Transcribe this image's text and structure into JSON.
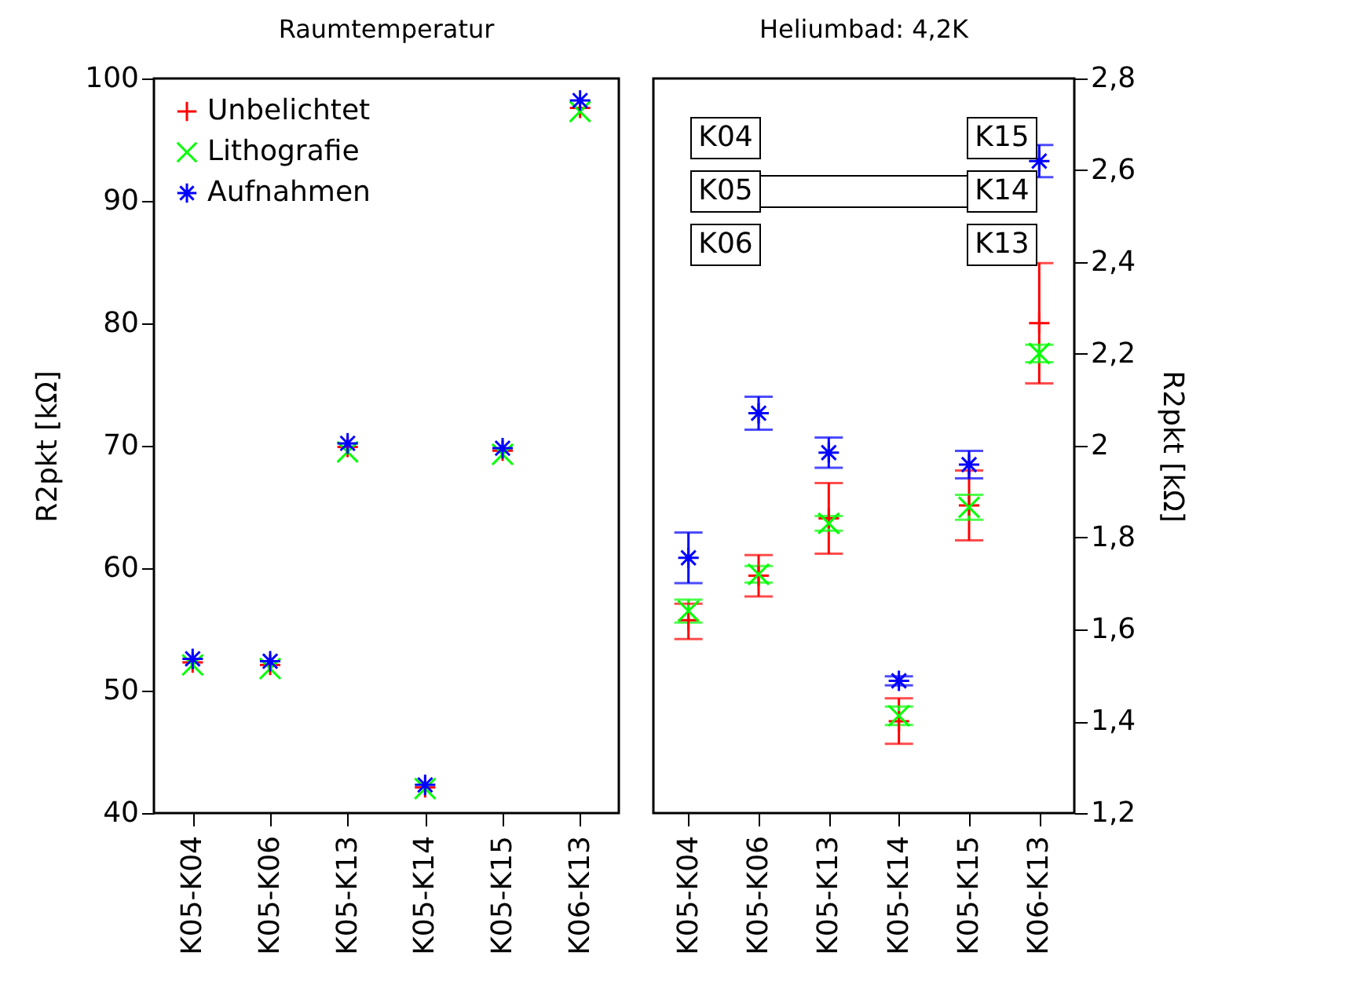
{
  "chart_data": [
    {
      "type": "scatter",
      "title": "Raumtemperatur",
      "categories": [
        "K05-K04",
        "K05-K06",
        "K05-K13",
        "K05-K14",
        "K05-K15",
        "K06-K13"
      ],
      "ylabel": "R2pkt [kΩ]",
      "ylim": [
        40,
        100
      ],
      "yticks": [
        40,
        50,
        60,
        70,
        80,
        90,
        100
      ],
      "grid": false,
      "legend": "top left",
      "series": [
        {
          "name": "Unbelichtet",
          "color": "#ff0000",
          "values": [
            52.3,
            52.1,
            69.9,
            42.1,
            69.6,
            97.6
          ]
        },
        {
          "name": "Lithografie",
          "color": "#00ff00",
          "values": [
            52.1,
            51.8,
            69.5,
            42.0,
            69.3,
            97.3
          ]
        },
        {
          "name": "Aufnahmen",
          "color": "#0000ff",
          "values": [
            52.6,
            52.4,
            70.2,
            42.3,
            69.8,
            98.2
          ]
        }
      ]
    },
    {
      "type": "scatter",
      "title": "Heliumbad: 4,2K",
      "categories": [
        "K05-K04",
        "K05-K06",
        "K05-K13",
        "K05-K14",
        "K05-K15",
        "K06-K13"
      ],
      "y2label": "R2pkt [kΩ]",
      "y2lim": [
        1.2,
        2.8
      ],
      "y2ticks": [
        {
          "value": 1.2,
          "label": "1,2"
        },
        {
          "value": 1.4,
          "label": "1,4"
        },
        {
          "value": 1.6,
          "label": "1,6"
        },
        {
          "value": 1.8,
          "label": "1,8"
        },
        2,
        {
          "value": 2.2,
          "label": "2,2"
        },
        {
          "value": 2.4,
          "label": "2,4"
        },
        {
          "value": 2.6,
          "label": "2,6"
        },
        {
          "value": 2.8,
          "label": "2,8"
        }
      ],
      "grid": false,
      "legend": false,
      "annotations": [
        "K04",
        "K05",
        "K06",
        "K15",
        "K14",
        "K13"
      ],
      "series": [
        {
          "color": "#ff0000",
          "axis": "y2",
          "values": [
            1.62,
            1.717,
            1.842,
            1.4,
            1.87,
            2.267
          ],
          "errors": [
            [
              1.579,
              1.656
            ],
            0.045,
            0.077,
            [
              1.351,
              1.45
            ],
            0.076,
            [
              2.136,
              2.398
            ]
          ]
        },
        {
          "color": "#00ff00",
          "axis": "y2",
          "values": [
            1.64,
            1.72,
            1.831,
            1.412,
            1.866,
            2.201
          ],
          "errors": [
            0.025,
            0.018,
            0.016,
            0.02,
            0.027,
            0.019
          ]
        },
        {
          "color": "#0000ff",
          "axis": "y2",
          "values": [
            1.756,
            2.071,
            1.985,
            1.488,
            1.959,
            2.62
          ],
          "errors": [
            0.055,
            0.036,
            0.033,
            0.01,
            0.03,
            0.035
          ]
        }
      ]
    }
  ]
}
